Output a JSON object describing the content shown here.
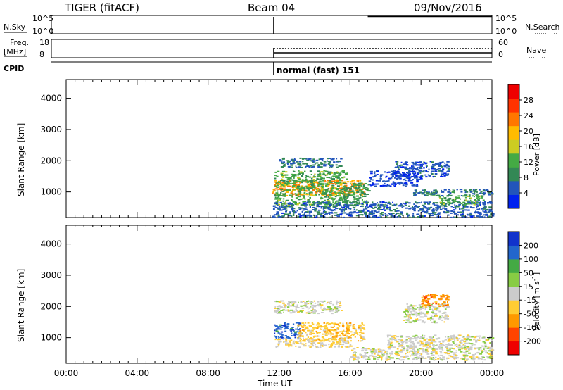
{
  "header": {
    "title": "TIGER (fitACF)",
    "beam": "Beam 04",
    "date": "09/Nov/2016"
  },
  "top_panels": {
    "nsky_label": "N.Sky",
    "nsky_ticks": [
      "10^5",
      "10^0"
    ],
    "nsearch_label": "N.Search",
    "nsearch_ticks": [
      "10^5",
      "10^0"
    ],
    "freq_label": "Freq.",
    "freq_unit": "[MHz]",
    "freq_ticks": [
      "18",
      "8"
    ],
    "nave_label": "Nave",
    "nave_ticks": [
      "60",
      "0"
    ],
    "cpid_label": "CPID",
    "cpid_text": "normal (fast) 151",
    "data_start_hour": 11.7
  },
  "colors": {
    "power": [
      "#0022ee",
      "#2255bb",
      "#338855",
      "#44aa44",
      "#cccc22",
      "#ffbb00",
      "#ff7700",
      "#ff3300",
      "#ee0000"
    ],
    "velocity": [
      "#ee0000",
      "#ff4400",
      "#ff9900",
      "#ffcc33",
      "#cccccc",
      "#88cc44",
      "#44aa44",
      "#2266cc",
      "#1133cc"
    ]
  },
  "chart_data": [
    {
      "type": "heatmap",
      "name": "power-panel",
      "xlabel": "",
      "ylabel": "Slant Range [km]",
      "xlim": [
        0,
        24
      ],
      "ylim": [
        180,
        4600
      ],
      "yticks": [
        "1000",
        "2000",
        "3000",
        "4000"
      ],
      "colorbar": {
        "label": "Power [dB]",
        "ticks": [
          "4",
          "8",
          "12",
          "16",
          "20",
          "24",
          "28"
        ],
        "range": [
          0,
          32
        ]
      },
      "regions": [
        {
          "x": [
            11.6,
            16.8
          ],
          "y": [
            900,
            1400
          ],
          "value": 22
        },
        {
          "x": [
            11.7,
            15.8
          ],
          "y": [
            600,
            1700
          ],
          "value": 12
        },
        {
          "x": [
            12.0,
            15.5
          ],
          "y": [
            1800,
            2100
          ],
          "value": 7
        },
        {
          "x": [
            15.5,
            17.0
          ],
          "y": [
            600,
            1300
          ],
          "value": 10
        },
        {
          "x": [
            11.6,
            24.0
          ],
          "y": [
            200,
            700
          ],
          "value": 6
        },
        {
          "x": [
            18.5,
            21.5
          ],
          "y": [
            1500,
            2000
          ],
          "value": 5
        },
        {
          "x": [
            19.5,
            24.0
          ],
          "y": [
            900,
            1100
          ],
          "value": 8
        },
        {
          "x": [
            21.0,
            23.5
          ],
          "y": [
            600,
            900
          ],
          "value": 12
        },
        {
          "x": [
            17.0,
            20.0
          ],
          "y": [
            1200,
            1700
          ],
          "value": 4
        }
      ]
    },
    {
      "type": "heatmap",
      "name": "velocity-panel",
      "xlabel": "Time UT",
      "ylabel": "Slant Range [km]",
      "xlim": [
        0,
        24
      ],
      "ylim": [
        180,
        4600
      ],
      "yticks": [
        "1000",
        "2000",
        "3000",
        "4000"
      ],
      "xticks": [
        "00:00",
        "04:00",
        "08:00",
        "12:00",
        "16:00",
        "20:00",
        "00:00"
      ],
      "colorbar": {
        "label": "Velocity [m s^-1]",
        "ticks": [
          "-200",
          "-100",
          "-50",
          "-15",
          "15",
          "50",
          "100",
          "200"
        ],
        "range": [
          -250,
          250
        ]
      },
      "regions": [
        {
          "x": [
            11.7,
            13.2
          ],
          "y": [
            1000,
            1500
          ],
          "value": 180
        },
        {
          "x": [
            13.0,
            16.8
          ],
          "y": [
            900,
            1500
          ],
          "value": -60
        },
        {
          "x": [
            11.7,
            16.0
          ],
          "y": [
            700,
            1000
          ],
          "value": -30
        },
        {
          "x": [
            11.7,
            15.5
          ],
          "y": [
            1800,
            2200
          ],
          "value": 0
        },
        {
          "x": [
            16.0,
            24.0
          ],
          "y": [
            300,
            700
          ],
          "value": 0
        },
        {
          "x": [
            18.0,
            24.0
          ],
          "y": [
            700,
            1100
          ],
          "value": 0
        },
        {
          "x": [
            19.0,
            21.5
          ],
          "y": [
            1500,
            2100
          ],
          "value": 5
        },
        {
          "x": [
            20.0,
            21.5
          ],
          "y": [
            2000,
            2400
          ],
          "value": -120
        }
      ]
    }
  ]
}
